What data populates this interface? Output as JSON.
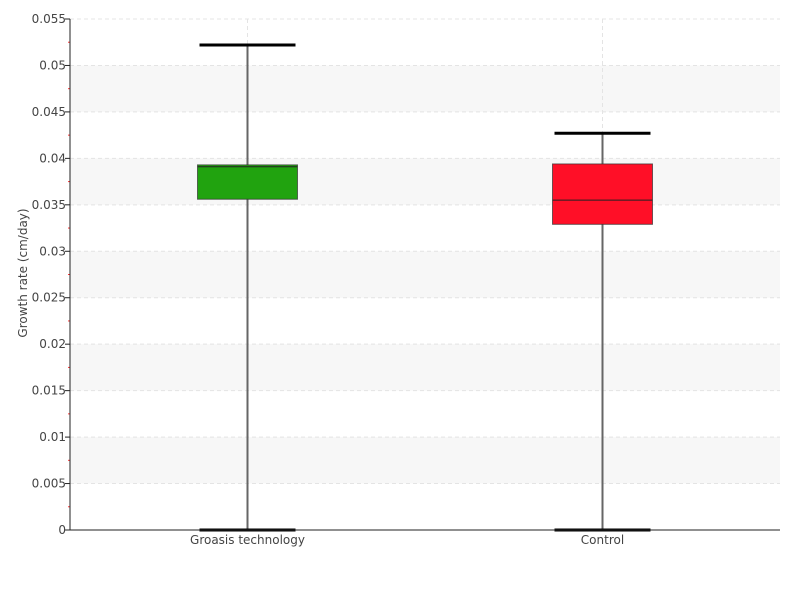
{
  "chart_data": {
    "type": "box",
    "title": "",
    "xlabel": "",
    "ylabel": "Growth rate (cm/day)",
    "ylim": [
      0,
      0.055
    ],
    "yticks": [
      "0",
      "0.005",
      "0.01",
      "0.015",
      "0.02",
      "0.025",
      "0.03",
      "0.035",
      "0.04",
      "0.045",
      "0.05",
      "0.055"
    ],
    "grid": true,
    "categories": [
      "Groasis technology",
      "Control"
    ],
    "series": [
      {
        "name": "Groasis technology",
        "min": 0,
        "q1": 0.0356,
        "median": 0.0391,
        "q3": 0.0393,
        "max": 0.0522,
        "color": "#21a30f"
      },
      {
        "name": "Control",
        "min": 0,
        "q1": 0.0329,
        "median": 0.0355,
        "q3": 0.0394,
        "max": 0.0427,
        "color": "#ff0f27"
      }
    ]
  }
}
